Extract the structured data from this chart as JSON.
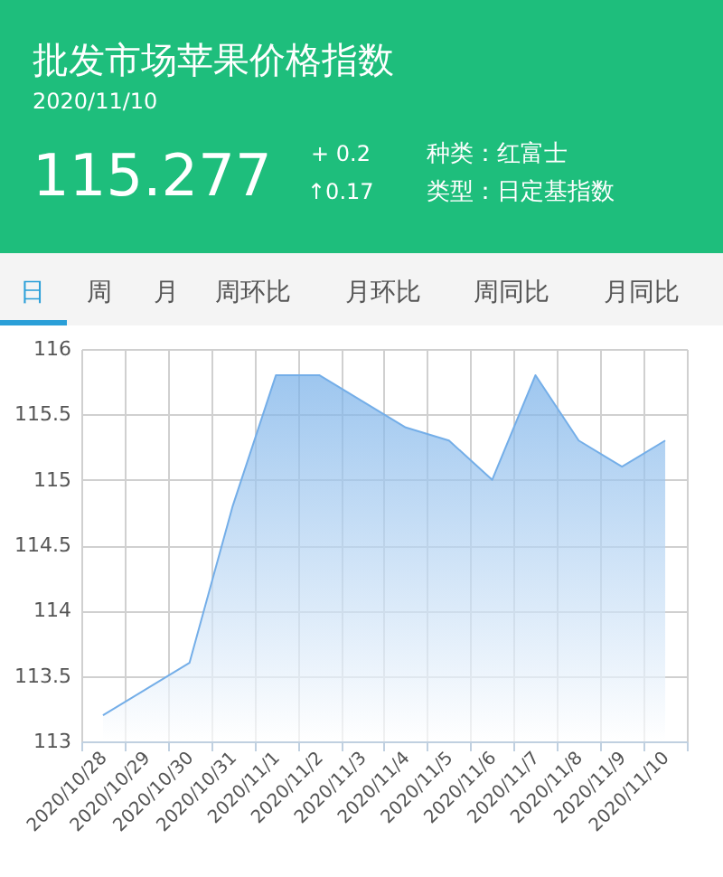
{
  "chart_data": {
    "type": "area",
    "title": "批发市场苹果价格指数",
    "subtitle": "2020/11/10",
    "annotations": [
      "115.277",
      "+ 0.2",
      "↑0.17",
      "种类：红富士",
      "类型：日定基指数",
      "日",
      "周",
      "月",
      "周环比",
      "月环比",
      "周同比",
      "月同比"
    ],
    "categories": [
      "2020/10/28",
      "2020/10/29",
      "2020/10/30",
      "2020/10/31",
      "2020/11/1",
      "2020/11/2",
      "2020/11/3",
      "2020/11/4",
      "2020/11/5",
      "2020/11/6",
      "2020/11/7",
      "2020/11/8",
      "2020/11/9",
      "2020/11/10"
    ],
    "series": [
      {
        "color": "#74aee8",
        "values": [
          113.2,
          113.4,
          113.6,
          114.8,
          115.8,
          115.8,
          115.6,
          115.4,
          115.3,
          115.0,
          115.8,
          115.3,
          115.1,
          115.3
        ]
      }
    ],
    "ylim": [
      113,
      116
    ],
    "yticks": [
      113,
      113.5,
      114,
      114.5,
      115,
      115.5,
      116
    ],
    "grid": true
  }
}
